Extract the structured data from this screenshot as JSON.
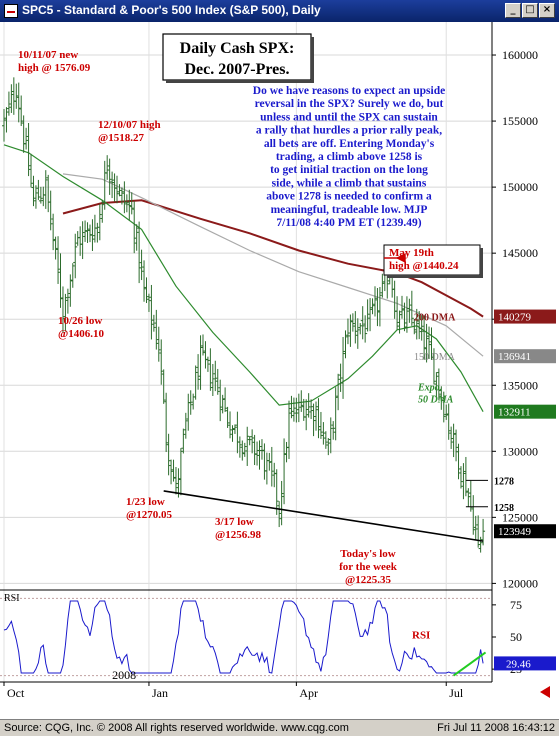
{
  "window": {
    "title": "SPC5 - Standard & Poor's 500 Index (S&P 500), Daily",
    "minimize_glyph": "_",
    "maximize_glyph": "□",
    "close_glyph": "×"
  },
  "footer": {
    "source": "Source: CQG, Inc. © 2008 All rights reserved worldwide. www.cqg.com",
    "timestamp": "Fri Jul 11 2008 16:43:12"
  },
  "chart_data": [
    {
      "type": "candlestick",
      "title": "Daily Cash SPX:",
      "subtitle": "Dec. 2007-Pres.",
      "ylim": [
        1195,
        1625
      ],
      "y_ticks": [
        1200,
        1250,
        1300,
        1350,
        1400,
        1450,
        1500,
        1550,
        1600
      ],
      "y_tick_labels": [
        "120000",
        "125000",
        "130000",
        "135000",
        "140000",
        "145000",
        "150000",
        "155000",
        "160000"
      ],
      "x_ticks": [
        {
          "label": "Oct",
          "day": 0
        },
        {
          "label": "Jan",
          "day": 59
        },
        {
          "label": "Apr",
          "day": 119
        },
        {
          "label": "Jul",
          "day": 180
        }
      ],
      "year_label": "2008",
      "price_path": [
        [
          0,
          1548
        ],
        [
          5,
          1576
        ],
        [
          12,
          1490
        ],
        [
          17,
          1500
        ],
        [
          24,
          1406
        ],
        [
          30,
          1460
        ],
        [
          38,
          1470
        ],
        [
          42,
          1518
        ],
        [
          47,
          1494
        ],
        [
          52,
          1482
        ],
        [
          57,
          1420
        ],
        [
          63,
          1380
        ],
        [
          66,
          1311
        ],
        [
          70,
          1270
        ],
        [
          74,
          1320
        ],
        [
          80,
          1370
        ],
        [
          86,
          1353
        ],
        [
          92,
          1320
        ],
        [
          98,
          1305
        ],
        [
          104,
          1300
        ],
        [
          110,
          1275
        ],
        [
          112,
          1257
        ],
        [
          116,
          1325
        ],
        [
          122,
          1335
        ],
        [
          127,
          1330
        ],
        [
          132,
          1300
        ],
        [
          140,
          1395
        ],
        [
          148,
          1395
        ],
        [
          154,
          1420
        ],
        [
          157,
          1440
        ],
        [
          160,
          1400
        ],
        [
          166,
          1400
        ],
        [
          172,
          1380
        ],
        [
          177,
          1350
        ],
        [
          181,
          1320
        ],
        [
          186,
          1285
        ],
        [
          188,
          1275
        ],
        [
          192,
          1240
        ],
        [
          193,
          1225
        ],
        [
          195,
          1240
        ]
      ],
      "series": [
        {
          "name": "200 DMA",
          "color": "#8b1a1a",
          "last_value": "140279",
          "points": [
            [
              24,
              1480
            ],
            [
              40,
              1488
            ],
            [
              56,
              1490
            ],
            [
              80,
              1476
            ],
            [
              100,
              1465
            ],
            [
              120,
              1452
            ],
            [
              140,
              1442
            ],
            [
              160,
              1435
            ],
            [
              170,
              1428
            ],
            [
              180,
              1418
            ],
            [
              190,
              1408
            ],
            [
              195,
              1402
            ]
          ]
        },
        {
          "name": "150 DMA",
          "color": "#aaaaaa",
          "last_value": "136941",
          "points": [
            [
              24,
              1510
            ],
            [
              40,
              1506
            ],
            [
              56,
              1492
            ],
            [
              80,
              1470
            ],
            [
              100,
              1452
            ],
            [
              120,
              1436
            ],
            [
              140,
              1424
            ],
            [
              160,
              1412
            ],
            [
              180,
              1395
            ],
            [
              195,
              1372
            ]
          ]
        },
        {
          "name": "Expo. 50 DMA",
          "color": "#2e8b2e",
          "last_value": "132911",
          "points": [
            [
              0,
              1532
            ],
            [
              10,
              1526
            ],
            [
              24,
              1508
            ],
            [
              40,
              1490
            ],
            [
              56,
              1468
            ],
            [
              70,
              1425
            ],
            [
              85,
              1390
            ],
            [
              100,
              1360
            ],
            [
              112,
              1335
            ],
            [
              125,
              1338
            ],
            [
              140,
              1355
            ],
            [
              150,
              1372
            ],
            [
              160,
              1392
            ],
            [
              168,
              1395
            ],
            [
              176,
              1385
            ],
            [
              186,
              1360
            ],
            [
              195,
              1330
            ]
          ]
        }
      ],
      "current_price_label": "123949",
      "support_line": {
        "from": [
          65,
          1270
        ],
        "to": [
          195,
          1232
        ]
      },
      "resistance_levels": [
        {
          "label": "1278",
          "value": 1278
        },
        {
          "label": "1258",
          "value": 1258
        }
      ],
      "annotations": [
        {
          "lines": [
            "10/11/07 new",
            "high @ 1576.09"
          ],
          "color": "#cc0000"
        },
        {
          "lines": [
            "12/10/07 high",
            "@1518.27"
          ],
          "color": "#cc0000"
        },
        {
          "lines": [
            "10/26 low",
            "@1406.10"
          ],
          "color": "#cc0000"
        },
        {
          "lines": [
            "1/23 low",
            "@1270.05"
          ],
          "color": "#cc0000"
        },
        {
          "lines": [
            "3/17 low",
            "@1256.98"
          ],
          "color": "#cc0000"
        },
        {
          "lines": [
            "May 19th",
            "high @1440.24"
          ],
          "color": "#cc0000"
        },
        {
          "lines": [
            "Today's low",
            "for the week",
            "@1225.35"
          ],
          "color": "#cc0000"
        }
      ],
      "commentary": [
        "Do we have reasons to expect an upside",
        "reversal in the SPX? Surely we do, but",
        "unless and until the SPX can sustain",
        "a rally that hurdles a prior rally peak,",
        "all bets are off. Entering Monday's",
        "trading, a climb above 1258 is",
        "to get initial traction on the long",
        "side, while a climb that sustains",
        "above 1278 is needed to confirm a",
        "meaningful, tradeable low. MJP",
        "7/11/08  4:40 PM ET  (1239.49)"
      ],
      "commentary_color": "#1a1acc"
    },
    {
      "type": "line",
      "name": "RSI",
      "label": "RSI",
      "ylim": [
        15,
        85
      ],
      "y_ticks": [
        25,
        50,
        75
      ],
      "y_tick_labels": [
        "25",
        "50",
        "75"
      ],
      "levels": [
        80,
        20
      ],
      "color": "#1a1acc",
      "current_value_label": "29.46",
      "annotation": "RSI",
      "trendline_color": "#22cc22"
    }
  ]
}
